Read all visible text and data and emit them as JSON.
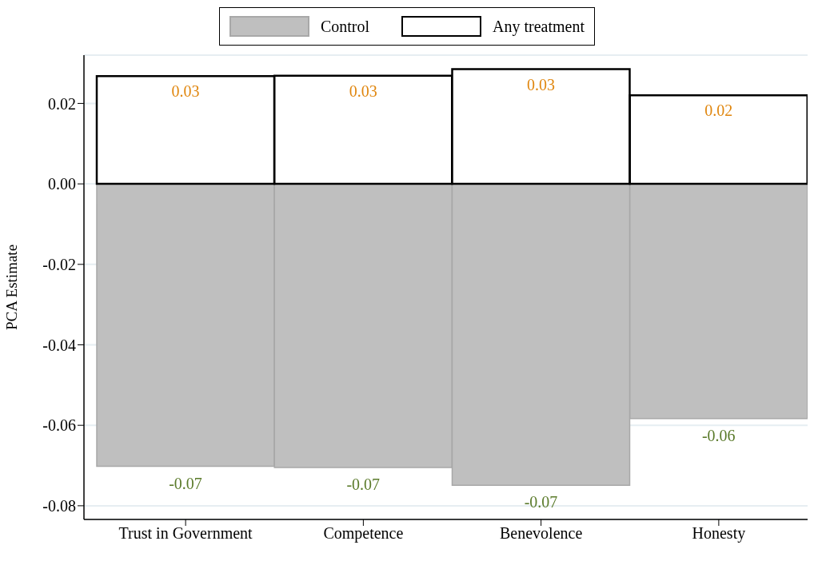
{
  "chart_data": {
    "type": "bar",
    "ylabel": "PCA Estimate",
    "categories": [
      "Trust in Government",
      "Competence",
      "Benevolence",
      "Honesty"
    ],
    "stacked": true,
    "series": [
      {
        "name": "Control",
        "color": "#bfbfbf",
        "values": [
          -0.0702,
          -0.0705,
          -0.0749,
          -0.0583
        ],
        "value_labels": [
          "-0.07",
          "-0.07",
          "-0.07",
          "-0.06"
        ]
      },
      {
        "name": "Any treatment",
        "color": "#ffffff",
        "values": [
          0.0268,
          0.0269,
          0.0285,
          0.022
        ],
        "value_labels": [
          "0.03",
          "0.03",
          "0.03",
          "0.02"
        ]
      }
    ],
    "ylim": [
      -0.0834,
      0.032
    ],
    "yticks": [
      {
        "value": -0.08,
        "label": "-0.08"
      },
      {
        "value": -0.06,
        "label": "-0.06"
      },
      {
        "value": -0.04,
        "label": "-0.04"
      },
      {
        "value": -0.02,
        "label": "-0.02"
      },
      {
        "value": 0,
        "label": "0.00"
      },
      {
        "value": 0.02,
        "label": "0.02"
      }
    ],
    "grid": "y",
    "legend": "top"
  }
}
